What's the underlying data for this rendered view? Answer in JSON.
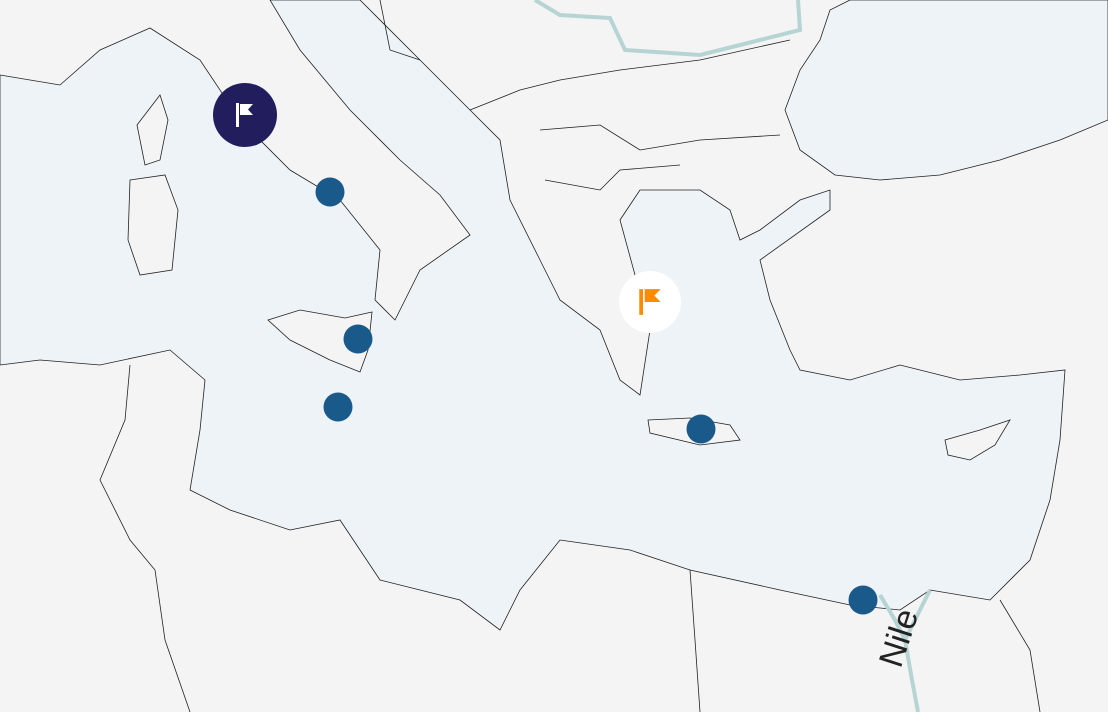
{
  "map": {
    "colors": {
      "land": "#f4f4f4",
      "sea": "#edf3f7",
      "border": "#222222",
      "river": "#b7d4d4",
      "dot": "#1a5a8a",
      "primary_flag_bg": "#221d5c",
      "secondary_flag": "#ff8c00"
    },
    "river_labels": [
      {
        "text": "Nile"
      }
    ],
    "markers": [
      {
        "type": "flag",
        "style": "primary",
        "icon": "flag-icon"
      },
      {
        "type": "flag",
        "style": "secondary",
        "icon": "flag-icon"
      },
      {
        "type": "dot"
      },
      {
        "type": "dot"
      },
      {
        "type": "dot"
      },
      {
        "type": "dot"
      },
      {
        "type": "dot"
      }
    ]
  }
}
